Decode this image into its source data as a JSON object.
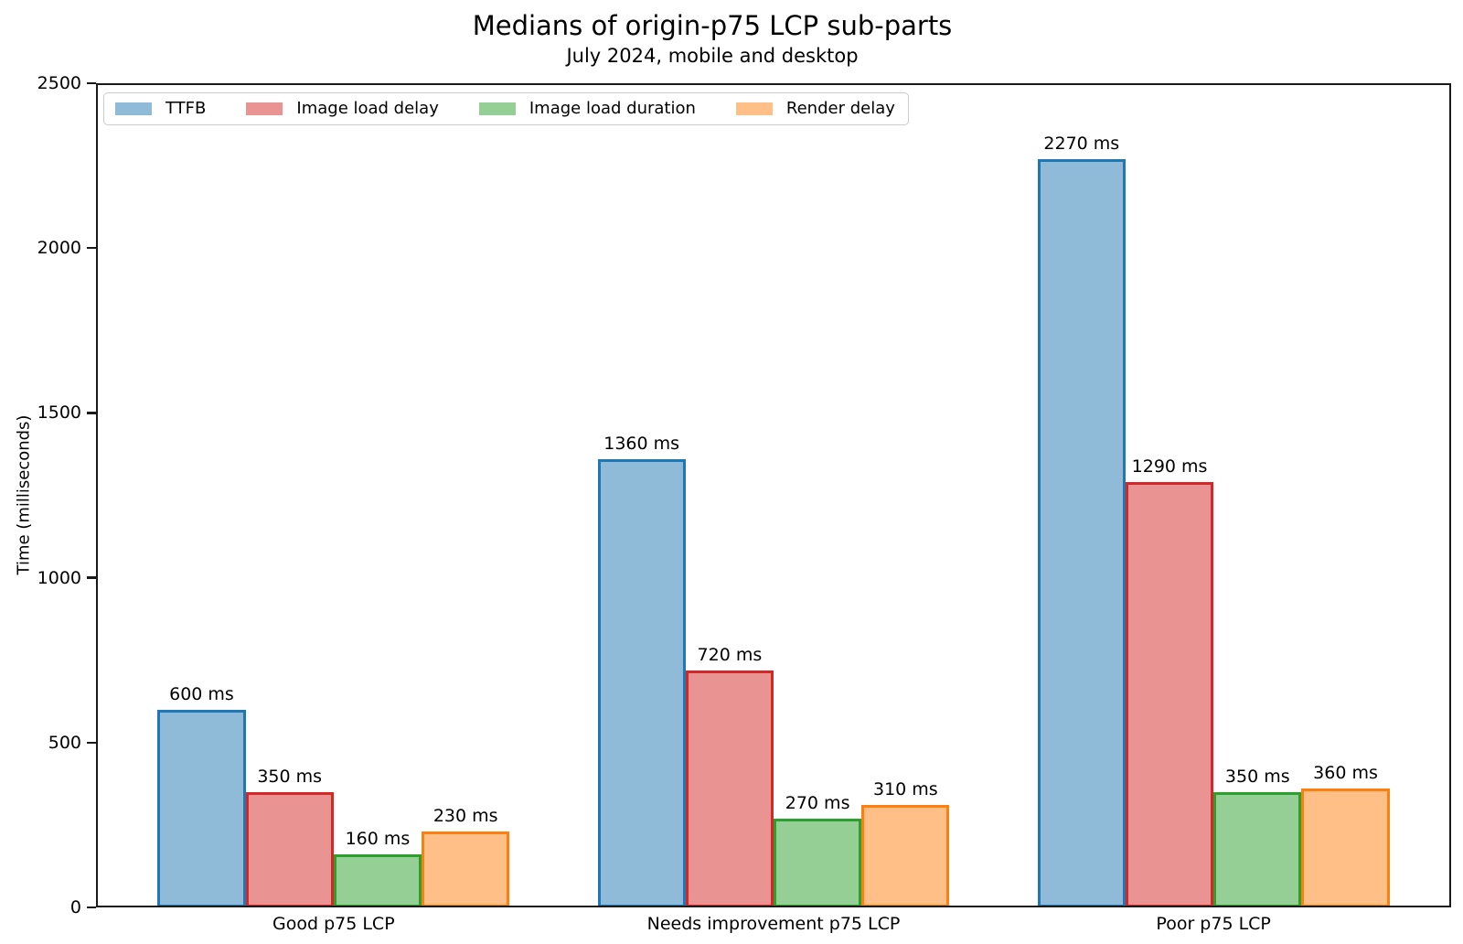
{
  "chart_data": {
    "type": "bar",
    "title": "Medians of origin-p75 LCP sub-parts",
    "subtitle": "July 2024, mobile and desktop",
    "xlabel": "",
    "ylabel": "Time (milliseconds)",
    "ylim": [
      0,
      2500
    ],
    "yticks": [
      0,
      500,
      1000,
      1500,
      2000,
      2500
    ],
    "grid": false,
    "legend_position": "upper left, horizontal",
    "value_suffix": " ms",
    "categories": [
      "Good p75 LCP",
      "Needs improvement p75 LCP",
      "Poor p75 LCP"
    ],
    "series": [
      {
        "name": "TTFB",
        "values": [
          600,
          1360,
          2270
        ],
        "fill_rgb": "31,119,180",
        "edge_color": "#1f77b4"
      },
      {
        "name": "Image load delay",
        "values": [
          350,
          720,
          1290
        ],
        "fill_rgb": "214,39,40",
        "edge_color": "#d62728"
      },
      {
        "name": "Image load duration",
        "values": [
          160,
          270,
          350
        ],
        "fill_rgb": "44,160,44",
        "edge_color": "#2ca02c"
      },
      {
        "name": "Render delay",
        "values": [
          230,
          310,
          360
        ],
        "fill_rgb": "255,127,14",
        "edge_color": "#ff7f0e"
      }
    ],
    "fill_alpha": 0.5,
    "axis_color": "#1a1a1a",
    "text_color": "#000000"
  }
}
